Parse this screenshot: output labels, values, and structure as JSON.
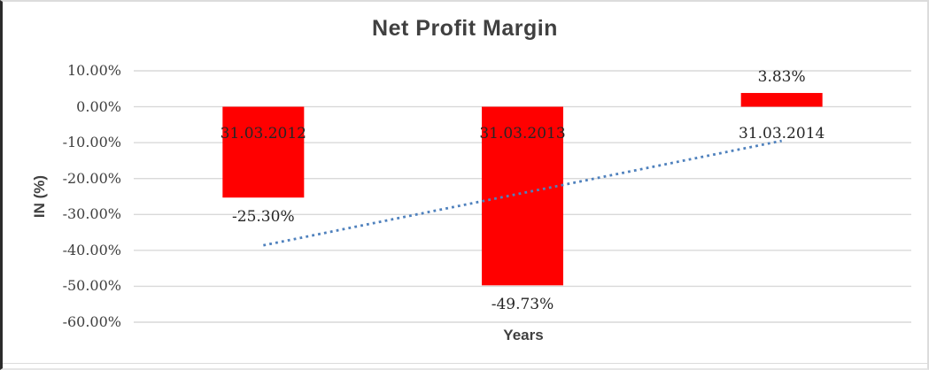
{
  "chart_data": {
    "type": "bar",
    "title": "Net Profit Margin",
    "xlabel": "Years",
    "ylabel": "IN (%)",
    "categories": [
      "31.03.2012",
      "31.03.2013",
      "31.03.2014"
    ],
    "values": [
      -25.3,
      -49.73,
      3.83
    ],
    "data_labels": [
      "-25.30%",
      "-49.73%",
      "3.83%"
    ],
    "ylim": [
      -60,
      10
    ],
    "ytick_step": 10,
    "ytick_labels": [
      "10.00%",
      "0.00%",
      "-10.00%",
      "-20.00%",
      "-30.00%",
      "-40.00%",
      "-50.00%",
      "-60.00%"
    ],
    "grid": true,
    "legend": "none",
    "bar_color": "#ff0000",
    "text_color": "#404040",
    "label_color": "#262626",
    "gridline_color": "#d9d9d9",
    "trendline": {
      "style": "dotted",
      "color": "#4f81bd",
      "start_value": -38.6,
      "end_value": -9.5
    }
  }
}
